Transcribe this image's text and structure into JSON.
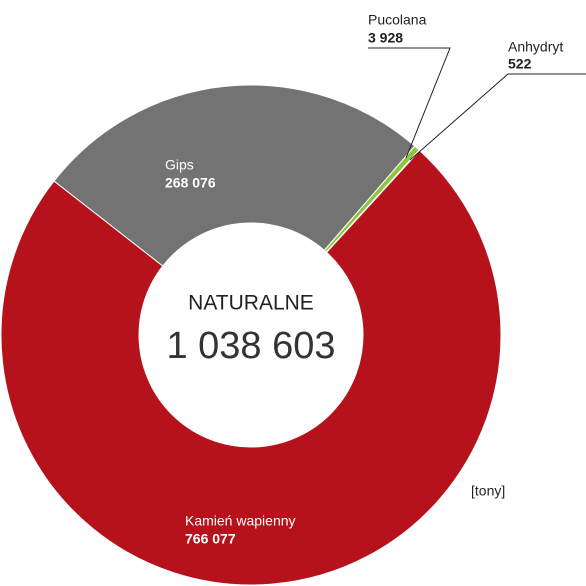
{
  "chart_data": {
    "type": "donut",
    "center_label": "NATURALNE",
    "total": 1038603,
    "total_label": "1 038 603",
    "unit": "[tony]",
    "categories": [
      "Gips",
      "Pucolana",
      "Anhydryt",
      "Kamień wapienny"
    ],
    "values": [
      268076,
      3928,
      522,
      766077
    ],
    "value_labels": [
      "268 076",
      "3 928",
      "522",
      "766 077"
    ],
    "colors": [
      "#737373",
      "#8cc63f",
      "#29a8e0",
      "#b5121b"
    ]
  }
}
